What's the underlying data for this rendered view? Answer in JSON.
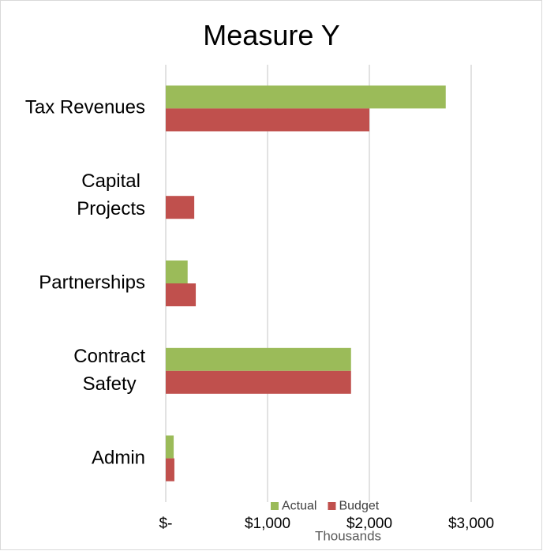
{
  "chart_data": {
    "type": "hbar",
    "title": "Measure Y",
    "categories": [
      "Tax Revenues",
      "Capital\nProjects",
      "Partnerships",
      "Contract\nSafety",
      "Admin"
    ],
    "series": [
      {
        "name": "Actual",
        "color": "#9bbb59",
        "values": [
          2750,
          0,
          215,
          1820,
          78
        ]
      },
      {
        "name": "Budget",
        "color": "#c0504d",
        "values": [
          2000,
          280,
          295,
          1820,
          85
        ]
      }
    ],
    "xlim": [
      0,
      3000
    ],
    "xticks": [
      {
        "value": 0,
        "label": "$-"
      },
      {
        "value": 1000,
        "label": "$1,000"
      },
      {
        "value": 2000,
        "label": "$2,000"
      },
      {
        "value": 3000,
        "label": "$3,000"
      }
    ],
    "x_unit_label": "Thousands",
    "grid": true,
    "legend": "bottom"
  }
}
